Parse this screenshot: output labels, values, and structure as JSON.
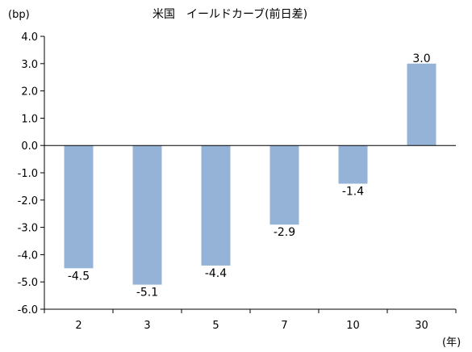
{
  "chart_data": {
    "type": "bar",
    "title": "米国　イールドカーブ(前日差)",
    "y_unit_label": "(bp)",
    "x_unit_label": "(年)",
    "categories": [
      "2",
      "3",
      "5",
      "7",
      "10",
      "30"
    ],
    "values": [
      -4.5,
      -5.1,
      -4.4,
      -2.9,
      -1.4,
      3.0
    ],
    "data_labels": [
      "-4.5",
      "-5.1",
      "-4.4",
      "-2.9",
      "-1.4",
      "3.0"
    ],
    "ylim": [
      -6.0,
      4.0
    ],
    "yticks": [
      "4.0",
      "3.0",
      "2.0",
      "1.0",
      "0.0",
      "-1.0",
      "-2.0",
      "-3.0",
      "-4.0",
      "-5.0",
      "-6.0"
    ],
    "ytick_values": [
      4,
      3,
      2,
      1,
      0,
      -1,
      -2,
      -3,
      -4,
      -5,
      -6
    ],
    "grid": false,
    "legend": "none",
    "bar_color": "#95b3d7"
  }
}
